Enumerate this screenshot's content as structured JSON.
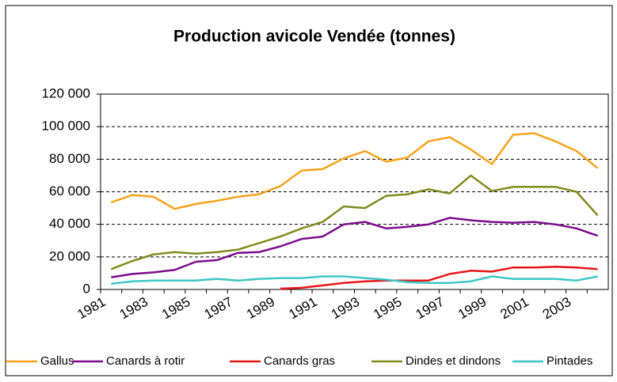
{
  "chart_data": {
    "type": "line",
    "title": "Production avicole Vendée (tonnes)",
    "categories": [
      "1981",
      null,
      "1983",
      null,
      "1985",
      null,
      "1987",
      null,
      "1989",
      null,
      "1991",
      null,
      "1993",
      null,
      "1995",
      null,
      "1997",
      null,
      "1999",
      null,
      "2001",
      null,
      "2003",
      null
    ],
    "series": [
      {
        "name": "Gallus",
        "color": "#f7a21b",
        "values": [
          53500,
          58000,
          57000,
          49500,
          52500,
          54500,
          57000,
          58500,
          63500,
          73000,
          74000,
          80500,
          85000,
          78500,
          81000,
          91000,
          93500,
          86000,
          77000,
          95000,
          96000,
          91000,
          85000,
          74500
        ]
      },
      {
        "name": "Canards à rotir",
        "color": "#7b0c8a",
        "values": [
          7500,
          9500,
          10500,
          12000,
          17000,
          18000,
          22500,
          23000,
          26500,
          31000,
          32500,
          40000,
          41500,
          37500,
          38500,
          40000,
          44000,
          42500,
          41500,
          41000,
          41500,
          40000,
          37500,
          33000
        ]
      },
      {
        "name": "Canards gras",
        "color": "#e8151a",
        "values": [
          null,
          null,
          null,
          null,
          null,
          null,
          null,
          null,
          500,
          1000,
          2500,
          4000,
          5000,
          5500,
          5500,
          5500,
          9500,
          11500,
          11000,
          13500,
          13500,
          14000,
          13500,
          12500
        ]
      },
      {
        "name": "Dindes et dindons",
        "color": "#7f8c1d",
        "values": [
          12500,
          17500,
          21500,
          23000,
          22000,
          23000,
          24500,
          28500,
          32500,
          37500,
          41500,
          51000,
          50000,
          57500,
          58500,
          61500,
          59000,
          70000,
          60500,
          63000,
          63000,
          63000,
          60000,
          45500
        ]
      },
      {
        "name": "Pintades",
        "color": "#3cc6c6",
        "values": [
          3500,
          5000,
          5500,
          5500,
          5500,
          6500,
          5500,
          6500,
          7000,
          7000,
          8000,
          8000,
          7000,
          6000,
          4500,
          4000,
          4000,
          5000,
          8000,
          6500,
          6500,
          6500,
          5500,
          8000
        ]
      }
    ],
    "ylim": [
      0,
      120000
    ],
    "yticks": [
      0,
      {
        "value": 20000,
        "label": "20 000"
      },
      {
        "value": 40000,
        "label": "40 000"
      },
      {
        "value": 60000,
        "label": "60 000"
      },
      {
        "value": 80000,
        "label": "80 000"
      },
      {
        "value": 100000,
        "label": "100 000"
      },
      {
        "value": 120000,
        "label": "120 000"
      }
    ],
    "grid": true,
    "legend": "bottom"
  }
}
